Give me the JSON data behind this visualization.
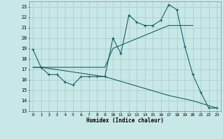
{
  "xlabel": "Humidex (Indice chaleur)",
  "bg_color": "#c8e8e8",
  "grid_color": "#aacece",
  "line_color": "#1a6060",
  "xlim": [
    -0.5,
    23.5
  ],
  "ylim": [
    13,
    23.5
  ],
  "yticks": [
    13,
    14,
    15,
    16,
    17,
    18,
    19,
    20,
    21,
    22,
    23
  ],
  "xticks": [
    0,
    1,
    2,
    3,
    4,
    5,
    6,
    7,
    8,
    9,
    10,
    11,
    12,
    13,
    14,
    15,
    16,
    17,
    18,
    19,
    20,
    21,
    22,
    23
  ],
  "line1_x": [
    0,
    1,
    2,
    3,
    4,
    5,
    6,
    7,
    8,
    9,
    10,
    11,
    12,
    13,
    14,
    15,
    16,
    17,
    18,
    19,
    20,
    21,
    22,
    23
  ],
  "line1_y": [
    18.9,
    17.2,
    16.5,
    16.5,
    15.8,
    15.5,
    16.3,
    16.3,
    16.3,
    16.3,
    20.0,
    18.5,
    22.2,
    21.5,
    21.2,
    21.2,
    21.7,
    23.2,
    22.7,
    19.2,
    16.5,
    14.8,
    13.3,
    13.3
  ],
  "line2_x": [
    0,
    1,
    9,
    10,
    17,
    20
  ],
  "line2_y": [
    17.2,
    17.2,
    17.2,
    19.0,
    21.2,
    21.2
  ],
  "line3_x": [
    0,
    1,
    9,
    17,
    20,
    23
  ],
  "line3_y": [
    17.2,
    17.2,
    16.3,
    14.5,
    14.0,
    13.3
  ]
}
